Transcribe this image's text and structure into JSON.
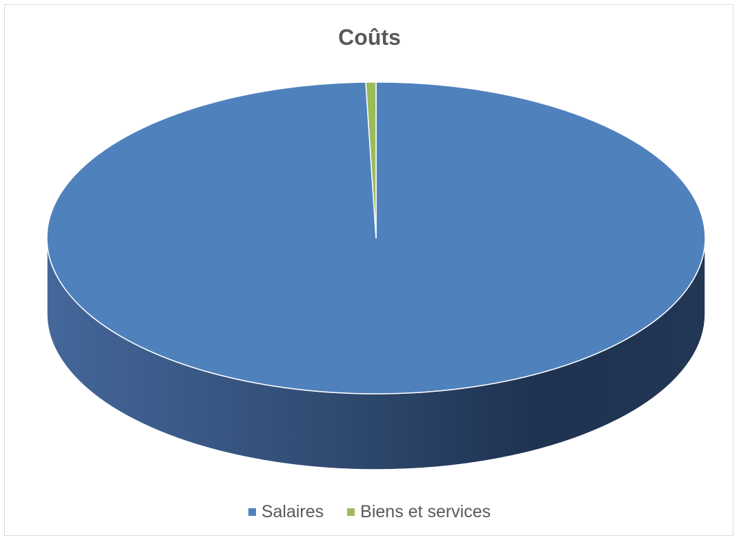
{
  "chart_data": {
    "type": "pie",
    "title": "Coûts",
    "categories": [
      "Salaires",
      "Biens et services"
    ],
    "values": [
      99.5,
      0.5
    ],
    "colors": [
      "#4f81bd",
      "#9bbb59"
    ],
    "legend_position": "bottom",
    "style": "3d"
  }
}
